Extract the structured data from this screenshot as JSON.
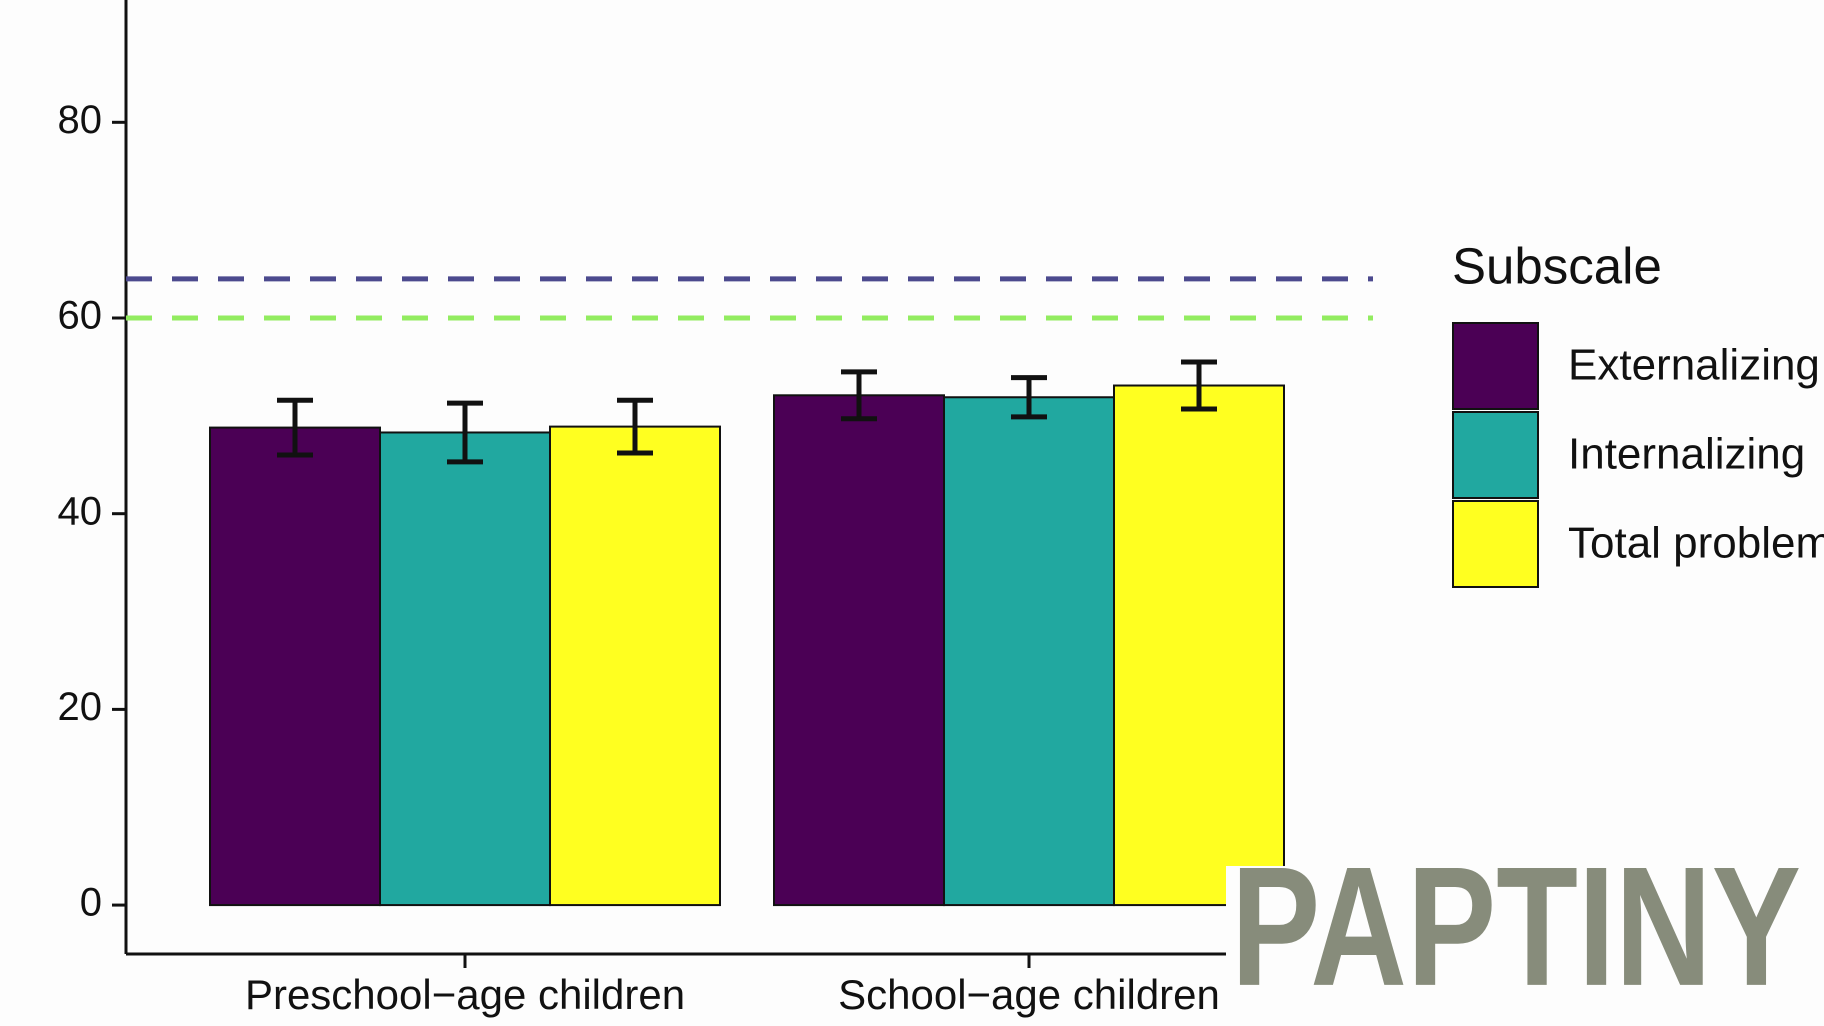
{
  "chart_data": {
    "type": "bar",
    "categories": [
      "Preschool−age children",
      "School−age children"
    ],
    "series": [
      {
        "name": "Externalizing",
        "color": "#4b0055",
        "values": [
          48.8,
          52.1
        ],
        "errors": [
          2.8,
          2.4
        ]
      },
      {
        "name": "Internalizing",
        "color": "#21a8a0",
        "values": [
          48.3,
          51.9
        ],
        "errors": [
          3.0,
          2.0
        ]
      },
      {
        "name": "Total problems",
        "color": "#ffff20",
        "values": [
          48.9,
          53.1
        ],
        "errors": [
          2.7,
          2.4
        ]
      }
    ],
    "reference_lines": [
      {
        "value": 64,
        "color": "#4c4a8e"
      },
      {
        "value": 60,
        "color": "#92ec60"
      }
    ],
    "ylim": [
      -5,
      92.5
    ],
    "yticks": [
      0,
      20,
      40,
      60,
      80
    ],
    "legend_title": "Subscale",
    "legend_position": "right",
    "watermark": "PAPTINY"
  }
}
